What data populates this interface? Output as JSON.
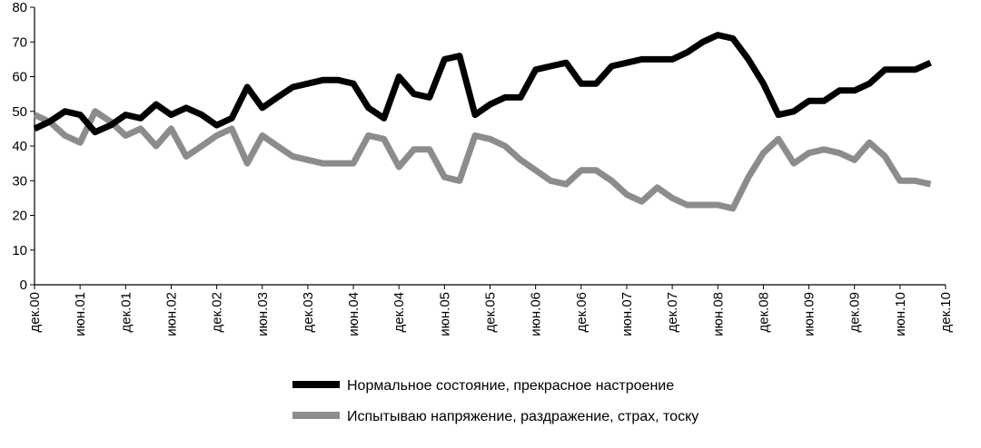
{
  "chart_data": {
    "type": "line",
    "title": "",
    "xlabel": "",
    "ylabel": "",
    "ylim": [
      0,
      80
    ],
    "yticks": [
      0,
      10,
      20,
      30,
      40,
      50,
      60,
      70,
      80
    ],
    "grid": false,
    "legend_position": "bottom",
    "x_tick_labels": [
      "дек.00",
      "июн.01",
      "дек.01",
      "июн.02",
      "дек.02",
      "июн.03",
      "дек.03",
      "июн.04",
      "дек.04",
      "июн.05",
      "дек.05",
      "июн.06",
      "дек.06",
      "июн.07",
      "дек.07",
      "июн.08",
      "дек.08",
      "июн.09",
      "дек.09",
      "июн.10",
      "дек.10"
    ],
    "x": [
      0.0,
      0.33,
      0.67,
      1.0,
      1.33,
      1.67,
      2.0,
      2.33,
      2.67,
      3.0,
      3.33,
      3.67,
      4.0,
      4.33,
      4.67,
      5.0,
      5.33,
      5.67,
      6.0,
      6.33,
      6.67,
      7.0,
      7.33,
      7.67,
      8.0,
      8.33,
      8.67,
      9.0,
      9.33,
      9.67,
      10.0,
      10.33,
      10.67,
      11.0,
      11.33,
      11.67,
      12.0,
      12.33,
      12.67,
      13.0,
      13.33,
      13.67,
      14.0,
      14.33,
      14.67,
      15.0,
      15.33,
      15.67,
      16.0,
      16.33,
      16.67,
      17.0,
      17.33,
      17.67,
      18.0,
      18.33,
      18.67,
      19.0,
      19.33,
      19.67
    ],
    "series": [
      {
        "name": "Нормальное состояние, прекрасное настроение",
        "color": "#000000",
        "values": [
          45,
          47,
          50,
          49,
          44,
          46,
          49,
          48,
          52,
          49,
          51,
          49,
          46,
          48,
          57,
          51,
          54,
          57,
          58,
          59,
          59,
          58,
          51,
          48,
          60,
          55,
          54,
          65,
          66,
          49,
          52,
          54,
          54,
          62,
          63,
          64,
          58,
          58,
          63,
          64,
          65,
          65,
          65,
          67,
          70,
          72,
          71,
          65,
          58,
          49,
          50,
          53,
          53,
          56,
          56,
          58,
          62,
          62,
          62,
          64
        ]
      },
      {
        "name": "Испытываю напряжение, раздражение, страх, тоску",
        "color": "#8c8c8c",
        "values": [
          49,
          47,
          43,
          41,
          50,
          47,
          43,
          45,
          40,
          45,
          37,
          40,
          43,
          45,
          35,
          43,
          40,
          37,
          36,
          35,
          35,
          35,
          43,
          42,
          34,
          39,
          39,
          31,
          30,
          43,
          42,
          40,
          36,
          33,
          30,
          29,
          33,
          33,
          30,
          26,
          24,
          28,
          25,
          23,
          23,
          23,
          22,
          31,
          38,
          42,
          35,
          38,
          39,
          38,
          36,
          41,
          37,
          30,
          30,
          29
        ]
      }
    ]
  }
}
